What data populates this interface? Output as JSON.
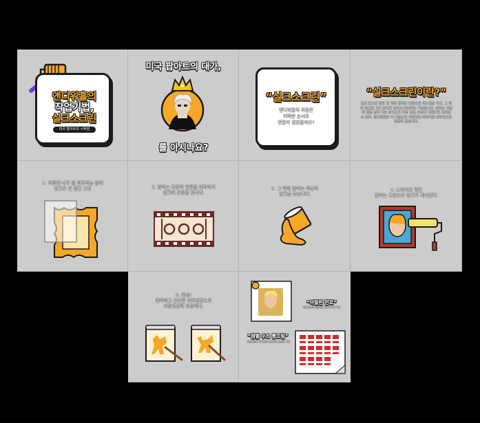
{
  "t1": {
    "title_l1": "앤디워홀의",
    "title_l2": "작업기법,",
    "title_l3": "실크스크린",
    "sub": "미국 팝아트의 시작점"
  },
  "t2": {
    "top": "미국 팝아트의 대가,",
    "bottom": "를 아시나요?"
  },
  "t3": {
    "title": "“실크스크린”",
    "line1": "앤디워홀의 작품은",
    "line2": "어떠한 순서로",
    "line3": "만들어 졌었을까요?"
  },
  "t4": {
    "title": "“실크스크린이란?”",
    "body": "실크 등으로 만든 판 위에 원하는 모양으로 마스킹을 하고, 그 위에 잉크를 고무 롤러로 밀어내 인쇄하는 기법입니다. 원하는 색상의 판을 겹쳐 찍는 방식으로 여러 장을 손쉽게 대량으로 제작할 수 있어, 앤디워홀은 이 기법으로 대중적인 이미지를 반복적으로 만들어 냈습니다."
  },
  "t5": {
    "caption": "1. 처음엔 나무 틀 알루미늄 틀에\n실크로 된 원단 고정"
  },
  "t6": {
    "caption": "2. 원하는 모양의 필름을 제작해서\n실크에 모양을 냅니다."
  },
  "t7": {
    "caption": "3. 그 위에 원하는 색상의\n잉크를 붓습니다."
  },
  "t8": {
    "caption": "4. 스퀴지로 밀면\n원하는 모양으로 잉크가 새겨진다."
  },
  "t9": {
    "caption": "5. 완성!\n편리하고 간단한 제작방법으로\n대량생산에 유용하다."
  },
  "t10": {
    "label1": "“마릴린 먼로”",
    "desc1": "앤디워홀의 대표적인 실크스크린 작품",
    "label2": "“캠벨 수프 통조림”",
    "desc2": "대량생산된 통조림을 반복하여 표현한 작품"
  },
  "colors": {
    "accent": "#f7a728",
    "tile": "#cccccc",
    "ink": "#1b1b1b",
    "brown": "#6b2a26"
  }
}
